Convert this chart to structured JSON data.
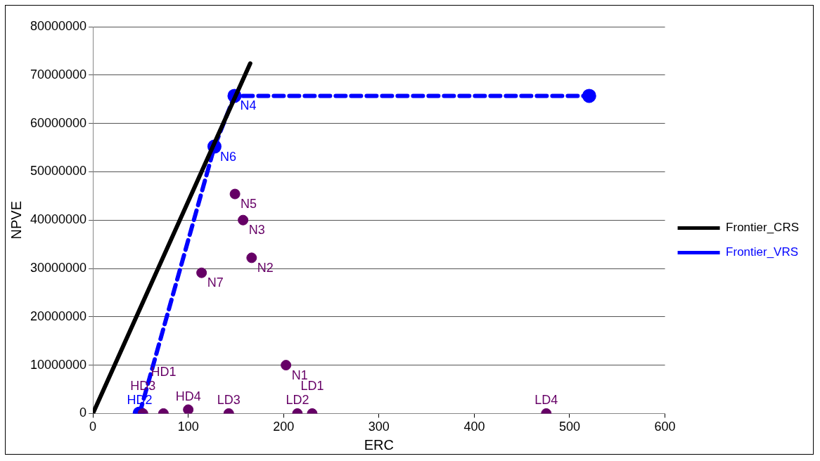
{
  "chart_data": {
    "type": "scatter",
    "xlabel": "ERC",
    "ylabel": "NPVE",
    "xlim": [
      0,
      600
    ],
    "xticks": [
      0,
      100,
      200,
      300,
      400,
      500,
      600
    ],
    "ylim": [
      0,
      80000000
    ],
    "yticks": [
      0,
      10000000,
      20000000,
      30000000,
      40000000,
      50000000,
      60000000,
      70000000,
      80000000
    ],
    "grid": "y",
    "legend": "right",
    "series": [
      {
        "type": "scatter",
        "color": "#660066",
        "marker": "circle",
        "x": [
          52.5,
          74,
          100,
          142.5,
          214.5,
          230,
          475.5,
          202.5,
          166.5,
          157.5,
          149,
          114
        ],
        "values": [
          0,
          0,
          800000,
          0,
          0,
          0,
          0,
          10000000,
          32200000,
          40000000,
          45400000,
          29100000
        ]
      },
      {
        "type": "line",
        "name": "Frontier_CRS",
        "color": "#000000",
        "marker": "none",
        "line_style": "solid",
        "x": [
          0,
          165
        ],
        "values": [
          0,
          72400000
        ]
      },
      {
        "type": "line",
        "name": "Frontier_VRS",
        "color": "#0000ff",
        "marker": "circle",
        "line_style": "dashed",
        "x": [
          49,
          127.5,
          148.5,
          520.5
        ],
        "values": [
          0,
          55200000,
          65700000,
          65700000
        ]
      }
    ],
    "annotations": [
      {
        "text": "HD2",
        "x": 49,
        "y": 0
      },
      {
        "text": "HD3",
        "x": 52.5,
        "y": 0
      },
      {
        "text": "HD1",
        "x": 74,
        "y": 0
      },
      {
        "text": "HD4",
        "x": 100,
        "y": 800000
      },
      {
        "text": "LD3",
        "x": 142.5,
        "y": 0
      },
      {
        "text": "LD2",
        "x": 214.5,
        "y": 0
      },
      {
        "text": "LD1",
        "x": 230,
        "y": 0
      },
      {
        "text": "LD4",
        "x": 475.5,
        "y": 0
      },
      {
        "text": "N1",
        "x": 202.5,
        "y": 10000000
      },
      {
        "text": "N2",
        "x": 166.5,
        "y": 32200000
      },
      {
        "text": "N3",
        "x": 157.5,
        "y": 40000000
      },
      {
        "text": "N5",
        "x": 149,
        "y": 45400000
      },
      {
        "text": "N7",
        "x": 114,
        "y": 29100000
      },
      {
        "text": "N6",
        "x": 127.5,
        "y": 55200000
      },
      {
        "text": "N4",
        "x": 148.5,
        "y": 65700000
      }
    ]
  }
}
